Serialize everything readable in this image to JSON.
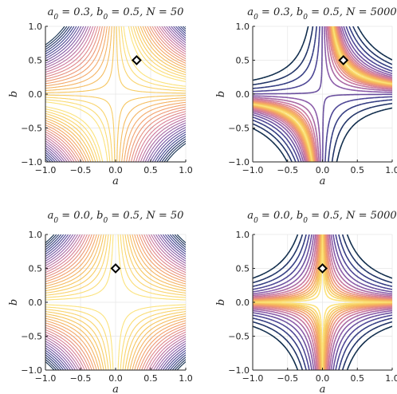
{
  "chart_data": [
    {
      "type": "contour",
      "title": "a_0 = 0.3, b_0 = 0.5, N = 50",
      "title_parts": [
        "a",
        "0",
        " = 0.3, ",
        "b",
        "0",
        " = 0.5, ",
        "N",
        " = 50"
      ],
      "xlabel": "a",
      "ylabel": "b",
      "xlim": [
        -1.0,
        1.0
      ],
      "ylim": [
        -1.0,
        1.0
      ],
      "xticks": [
        "-1.0",
        "-0.5",
        "0.0",
        "0.5",
        "1.0"
      ],
      "yticks": [
        "-1.0",
        "-0.5",
        "0.0",
        "0.5",
        "1.0"
      ],
      "a0": 0.3,
      "b0": 0.5,
      "N": 50,
      "marker": {
        "a": 0.3,
        "b": 0.5,
        "shape": "diamond"
      },
      "grid": true,
      "colormap": [
        "#0d2a4a",
        "#3b3f8f",
        "#8a5aa8",
        "#d57a9a",
        "#f29c6b",
        "#f6c35a",
        "#fbe27a"
      ]
    },
    {
      "type": "contour",
      "title": "a_0 = 0.3, b_0 = 0.5, N = 5000",
      "title_parts": [
        "a",
        "0",
        " = 0.3, ",
        "b",
        "0",
        " = 0.5, ",
        "N",
        " = 5000"
      ],
      "xlabel": "a",
      "ylabel": "b",
      "xlim": [
        -1.0,
        1.0
      ],
      "ylim": [
        -1.0,
        1.0
      ],
      "xticks": [
        "-1.0",
        "-0.5",
        "0.0",
        "0.5",
        "1.0"
      ],
      "yticks": [
        "-1.0",
        "-0.5",
        "0.0",
        "0.5",
        "1.0"
      ],
      "a0": 0.3,
      "b0": 0.5,
      "N": 5000,
      "marker": {
        "a": 0.3,
        "b": 0.5,
        "shape": "diamond"
      },
      "grid": true,
      "colormap": [
        "#0d2a4a",
        "#3b3f8f",
        "#8a5aa8",
        "#d57a9a",
        "#f29c6b",
        "#f6c35a",
        "#fbe27a"
      ]
    },
    {
      "type": "contour",
      "title": "a_0 = 0.0, b_0 = 0.5, N = 50",
      "title_parts": [
        "a",
        "0",
        " = 0.0, ",
        "b",
        "0",
        " = 0.5, ",
        "N",
        " = 50"
      ],
      "xlabel": "a",
      "ylabel": "b",
      "xlim": [
        -1.0,
        1.0
      ],
      "ylim": [
        -1.0,
        1.0
      ],
      "xticks": [
        "-1.0",
        "-0.5",
        "0.0",
        "0.5",
        "1.0"
      ],
      "yticks": [
        "-1.0",
        "-0.5",
        "0.0",
        "0.5",
        "1.0"
      ],
      "a0": 0.0,
      "b0": 0.5,
      "N": 50,
      "marker": {
        "a": 0.0,
        "b": 0.5,
        "shape": "diamond"
      },
      "grid": true,
      "colormap": [
        "#0d2a4a",
        "#3b3f8f",
        "#8a5aa8",
        "#d57a9a",
        "#f29c6b",
        "#f6c35a",
        "#fbe27a"
      ]
    },
    {
      "type": "contour",
      "title": "a_0 = 0.0, b_0 = 0.5, N = 5000",
      "title_parts": [
        "a",
        "0",
        " = 0.0, ",
        "b",
        "0",
        " = 0.5, ",
        "N",
        " = 5000"
      ],
      "xlabel": "a",
      "ylabel": "b",
      "xlim": [
        -1.0,
        1.0
      ],
      "ylim": [
        -1.0,
        1.0
      ],
      "xticks": [
        "-1.0",
        "-0.5",
        "0.0",
        "0.5",
        "1.0"
      ],
      "yticks": [
        "-1.0",
        "-0.5",
        "0.0",
        "0.5",
        "1.0"
      ],
      "a0": 0.0,
      "b0": 0.5,
      "N": 5000,
      "marker": {
        "a": 0.0,
        "b": 0.5,
        "shape": "diamond"
      },
      "grid": true,
      "colormap": [
        "#0d2a4a",
        "#3b3f8f",
        "#8a5aa8",
        "#d57a9a",
        "#f29c6b",
        "#f6c35a",
        "#fbe27a"
      ]
    }
  ]
}
